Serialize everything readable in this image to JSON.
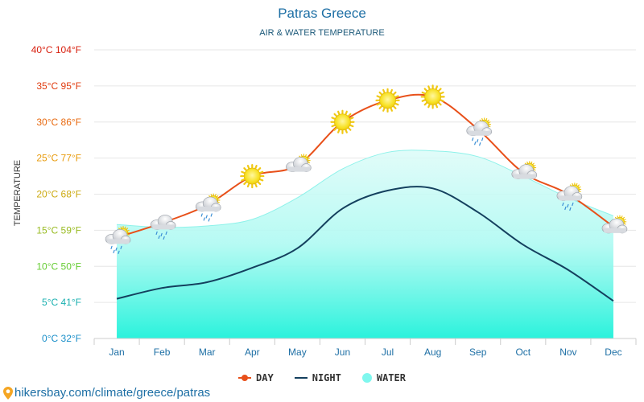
{
  "chart_data": {
    "type": "line",
    "title": "Patras Greece",
    "subtitle": "AIR & WATER TEMPERATURE",
    "ylabel": "TEMPERATURE",
    "categories": [
      "Jan",
      "Feb",
      "Mar",
      "Apr",
      "May",
      "Jun",
      "Jul",
      "Aug",
      "Sep",
      "Oct",
      "Nov",
      "Dec"
    ],
    "ylim": [
      0,
      40
    ],
    "yticks": [
      {
        "label": "0°C 32°F",
        "value": 0,
        "color": "#1a8fc9"
      },
      {
        "label": "5°C 41°F",
        "value": 5,
        "color": "#1ab0b0"
      },
      {
        "label": "10°C 50°F",
        "value": 10,
        "color": "#66cc33"
      },
      {
        "label": "15°C 59°F",
        "value": 15,
        "color": "#99bb22"
      },
      {
        "label": "20°C 68°F",
        "value": 20,
        "color": "#ccaa11"
      },
      {
        "label": "25°C 77°F",
        "value": 25,
        "color": "#e89b0c"
      },
      {
        "label": "30°C 86°F",
        "value": 30,
        "color": "#e86a10"
      },
      {
        "label": "35°C 95°F",
        "value": 35,
        "color": "#e03c10"
      },
      {
        "label": "40°C 104°F",
        "value": 40,
        "color": "#d81f0e"
      }
    ],
    "series": [
      {
        "name": "DAY",
        "color": "#e8501a",
        "values": [
          14,
          16,
          18.5,
          22.5,
          24,
          30,
          33,
          33.5,
          29,
          23,
          20,
          15.5
        ]
      },
      {
        "name": "NIGHT",
        "color": "#14405e",
        "values": [
          5.5,
          7,
          7.8,
          9.8,
          12.5,
          18,
          20.5,
          20.8,
          17.5,
          13,
          9.5,
          5.2
        ]
      },
      {
        "name": "WATER",
        "color": "#7ff7ee",
        "values": [
          15.8,
          15.4,
          15.6,
          16.5,
          19.5,
          23.5,
          25.8,
          26,
          25.2,
          22.5,
          19.5,
          17
        ]
      }
    ],
    "weather_icons": [
      "cloud-sun-rain",
      "cloud-rain",
      "cloud-sun-rain",
      "sun",
      "cloud-sun",
      "sun",
      "sun",
      "sun",
      "cloud-sun-rain",
      "cloud-sun",
      "cloud-sun-rain",
      "cloud-sun"
    ],
    "grid": true,
    "legend_position": "bottom-center"
  },
  "source_text": "hikersbay.com/climate/greece/patras"
}
